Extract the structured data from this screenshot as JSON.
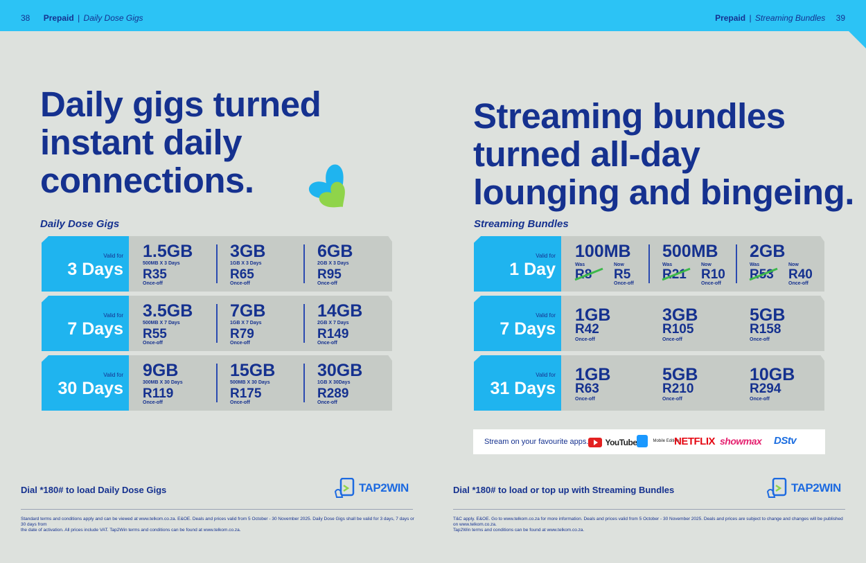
{
  "header": {
    "left": {
      "page_number": "38",
      "section": "Prepaid",
      "sub": "Daily Dose Gigs",
      "separator": "|"
    },
    "right": {
      "section": "Prepaid",
      "sub": "Streaming Bundles",
      "page_number": "39",
      "separator": "|"
    }
  },
  "left": {
    "headline": [
      "Daily gigs turned",
      "instant daily",
      "connections."
    ],
    "section_title": "Daily Dose Gigs",
    "rows": [
      {
        "valid_for": "Valid for",
        "duration": "3 Days",
        "bundles": [
          {
            "size": "1.5GB",
            "desc": "500MB X 3 Days",
            "price": "R35",
            "once": "Once-off"
          },
          {
            "size": "3GB",
            "desc": "1GB X 3 Days",
            "price": "R65",
            "once": "Once-off"
          },
          {
            "size": "6GB",
            "desc": "2GB X 3 Days",
            "price": "R95",
            "once": "Once-off"
          }
        ]
      },
      {
        "valid_for": "Valid for",
        "duration": "7 Days",
        "bundles": [
          {
            "size": "3.5GB",
            "desc": "500MB X 7 Days",
            "price": "R55",
            "once": "Once-off"
          },
          {
            "size": "7GB",
            "desc": "1GB X 7 Days",
            "price": "R79",
            "once": "Once-off"
          },
          {
            "size": "14GB",
            "desc": "2GB X 7 Days",
            "price": "R149",
            "once": "Once-off"
          }
        ]
      },
      {
        "valid_for": "Valid for",
        "duration": "30 Days",
        "bundles": [
          {
            "size": "9GB",
            "desc": "300MB X 30 Days",
            "price": "R119",
            "once": "Once-off"
          },
          {
            "size": "15GB",
            "desc": "500MB X 30 Days",
            "price": "R175",
            "once": "Once-off"
          },
          {
            "size": "30GB",
            "desc": "1GB X 30Days",
            "price": "R289",
            "once": "Once-off"
          }
        ]
      }
    ],
    "dial": "Dial *180# to load Daily Dose Gigs",
    "tap2win": "TAP2WIN",
    "fine_print": [
      "Standard terms and conditions apply and can be viewed at www.telkom.co.za. E&OE. Deals and prices valid from 5 October - 30 November 2025. Daily Dose Gigs shall be valid for 3 days, 7 days or 30 days from",
      "the date of activation. All prices include VAT. Tap2Win terms and conditions can be found at www.telkom.co.za."
    ]
  },
  "right": {
    "headline": [
      "Streaming bundles",
      "turned all-day",
      "lounging and bingeing."
    ],
    "section_title": "Streaming Bundles",
    "row1": {
      "valid_for": "Valid for",
      "duration": "1 Day",
      "bundles": [
        {
          "size": "100MB",
          "was_label": "Was",
          "was": "R8",
          "now_label": "Now",
          "now": "R5",
          "once": "Once-off"
        },
        {
          "size": "500MB",
          "was_label": "Was",
          "was": "R21",
          "now_label": "Now",
          "now": "R10",
          "once": "Once-off"
        },
        {
          "size": "2GB",
          "was_label": "Was",
          "was": "R53",
          "now_label": "Now",
          "now": "R40",
          "once": "Once-off"
        }
      ]
    },
    "row2": {
      "valid_for": "Valid for",
      "duration": "7 Days",
      "bundles": [
        {
          "size": "1GB",
          "price": "R42",
          "once": "Once-off"
        },
        {
          "size": "3GB",
          "price": "R105",
          "once": "Once-off"
        },
        {
          "size": "5GB",
          "price": "R158",
          "once": "Once-off"
        }
      ]
    },
    "row3": {
      "valid_for": "Valid for",
      "duration": "31 Days",
      "bundles": [
        {
          "size": "1GB",
          "price": "R63",
          "once": "Once-off"
        },
        {
          "size": "5GB",
          "price": "R210",
          "once": "Once-off"
        },
        {
          "size": "10GB",
          "price": "R294",
          "once": "Once-off"
        }
      ]
    },
    "apps": {
      "text": "Stream on your favourite apps.",
      "youtube": "YouTube",
      "prime_video": "Mobile Edition",
      "netflix": "NETFLIX",
      "showmax": "showmax",
      "dstv": "DStv"
    },
    "dial": "Dial *180# to load or top up with Streaming Bundles",
    "tap2win": "TAP2WIN",
    "fine_print": [
      "T&C apply. E&OE. Go to www.telkom.co.za for more information. Deals and prices valid from 5 October - 30 November 2025. Deals and prices are subject to change and changes will be published on www.telkom.co.za.",
      "Tap2Win terms and conditions can be found at www.telkom.co.za."
    ]
  },
  "colors": {
    "brand_blue": "#15318f",
    "sky_blue": "#2cc3f5",
    "label_blue": "#1fb4ef",
    "strike_green": "#3db84a"
  }
}
